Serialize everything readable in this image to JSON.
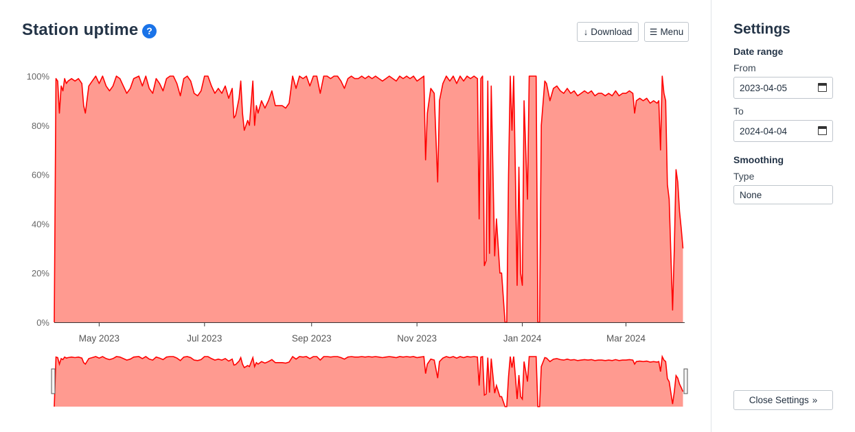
{
  "header": {
    "title": "Station uptime",
    "help_icon": "question-circle-icon",
    "help_glyph": "?",
    "download_label": "Download",
    "menu_label": "Menu"
  },
  "sidebar": {
    "title": "Settings",
    "date_range_heading": "Date range",
    "from_label": "From",
    "from_value": "2023-04-05",
    "to_label": "To",
    "to_value": "2024-04-04",
    "smoothing_heading": "Smoothing",
    "type_label": "Type",
    "type_value": "None",
    "close_label": "Close Settings"
  },
  "colors": {
    "line": "#ff0000",
    "fill": "#ff9a90",
    "accent": "#1a73e8"
  },
  "chart_data": {
    "type": "area",
    "title": "Station uptime",
    "xlabel": "",
    "ylabel": "",
    "x_start": "2023-04-05",
    "x_end": "2024-04-04",
    "ylim": [
      0,
      100
    ],
    "y_ticks": [
      "0%",
      "20%",
      "40%",
      "60%",
      "80%",
      "100%"
    ],
    "x_ticks": [
      {
        "date": "2023-05-01",
        "label": "May 2023"
      },
      {
        "date": "2023-07-01",
        "label": "Jul 2023"
      },
      {
        "date": "2023-09-01",
        "label": "Sep 2023"
      },
      {
        "date": "2023-11-01",
        "label": "Nov 2023"
      },
      {
        "date": "2024-01-01",
        "label": "Jan 2024"
      },
      {
        "date": "2024-03-01",
        "label": "Mar 2024"
      }
    ],
    "grid": false,
    "legend": "none",
    "navigator": true,
    "series": [
      {
        "points": [
          [
            "2023-04-05",
            0
          ],
          [
            "2023-04-06",
            99
          ],
          [
            "2023-04-07",
            98
          ],
          [
            "2023-04-08",
            85
          ],
          [
            "2023-04-09",
            96
          ],
          [
            "2023-04-10",
            94
          ],
          [
            "2023-04-11",
            99
          ],
          [
            "2023-04-12",
            97
          ],
          [
            "2023-04-13",
            98
          ],
          [
            "2023-04-15",
            99
          ],
          [
            "2023-04-17",
            98
          ],
          [
            "2023-04-19",
            99
          ],
          [
            "2023-04-21",
            97
          ],
          [
            "2023-04-22",
            88
          ],
          [
            "2023-04-23",
            85
          ],
          [
            "2023-04-25",
            96
          ],
          [
            "2023-04-27",
            98
          ],
          [
            "2023-04-29",
            100
          ],
          [
            "2023-05-01",
            97
          ],
          [
            "2023-05-03",
            100
          ],
          [
            "2023-05-05",
            96
          ],
          [
            "2023-05-07",
            94
          ],
          [
            "2023-05-09",
            96
          ],
          [
            "2023-05-11",
            100
          ],
          [
            "2023-05-13",
            99
          ],
          [
            "2023-05-15",
            96
          ],
          [
            "2023-05-17",
            93
          ],
          [
            "2023-05-19",
            95
          ],
          [
            "2023-05-21",
            99
          ],
          [
            "2023-05-24",
            100
          ],
          [
            "2023-05-26",
            96
          ],
          [
            "2023-05-28",
            100
          ],
          [
            "2023-05-30",
            95
          ],
          [
            "2023-06-01",
            93
          ],
          [
            "2023-06-03",
            99
          ],
          [
            "2023-06-05",
            97
          ],
          [
            "2023-06-07",
            94
          ],
          [
            "2023-06-09",
            99
          ],
          [
            "2023-06-11",
            100
          ],
          [
            "2023-06-13",
            100
          ],
          [
            "2023-06-15",
            97
          ],
          [
            "2023-06-17",
            92
          ],
          [
            "2023-06-19",
            99
          ],
          [
            "2023-06-21",
            100
          ],
          [
            "2023-06-23",
            98
          ],
          [
            "2023-06-25",
            93
          ],
          [
            "2023-06-27",
            92
          ],
          [
            "2023-06-29",
            94
          ],
          [
            "2023-07-01",
            100
          ],
          [
            "2023-07-03",
            100
          ],
          [
            "2023-07-05",
            96
          ],
          [
            "2023-07-07",
            93
          ],
          [
            "2023-07-09",
            95
          ],
          [
            "2023-07-11",
            93
          ],
          [
            "2023-07-13",
            96
          ],
          [
            "2023-07-15",
            91
          ],
          [
            "2023-07-17",
            95
          ],
          [
            "2023-07-18",
            83
          ],
          [
            "2023-07-19",
            84
          ],
          [
            "2023-07-21",
            91
          ],
          [
            "2023-07-22",
            98
          ],
          [
            "2023-07-23",
            85
          ],
          [
            "2023-07-24",
            78
          ],
          [
            "2023-07-26",
            82
          ],
          [
            "2023-07-27",
            80
          ],
          [
            "2023-07-29",
            98
          ],
          [
            "2023-07-30",
            80
          ],
          [
            "2023-07-31",
            88
          ],
          [
            "2023-08-01",
            85
          ],
          [
            "2023-08-03",
            90
          ],
          [
            "2023-08-05",
            87
          ],
          [
            "2023-08-07",
            90
          ],
          [
            "2023-08-09",
            94
          ],
          [
            "2023-08-11",
            88
          ],
          [
            "2023-08-13",
            88
          ],
          [
            "2023-08-15",
            88
          ],
          [
            "2023-08-17",
            87
          ],
          [
            "2023-08-19",
            89
          ],
          [
            "2023-08-21",
            100
          ],
          [
            "2023-08-23",
            95
          ],
          [
            "2023-08-25",
            100
          ],
          [
            "2023-08-27",
            99
          ],
          [
            "2023-08-29",
            100
          ],
          [
            "2023-08-31",
            96
          ],
          [
            "2023-09-02",
            100
          ],
          [
            "2023-09-04",
            100
          ],
          [
            "2023-09-06",
            93
          ],
          [
            "2023-09-08",
            100
          ],
          [
            "2023-09-10",
            100
          ],
          [
            "2023-09-12",
            99
          ],
          [
            "2023-09-14",
            100
          ],
          [
            "2023-09-16",
            100
          ],
          [
            "2023-09-18",
            98
          ],
          [
            "2023-09-20",
            95
          ],
          [
            "2023-09-22",
            99
          ],
          [
            "2023-09-24",
            100
          ],
          [
            "2023-09-26",
            99
          ],
          [
            "2023-09-28",
            99
          ],
          [
            "2023-09-30",
            100
          ],
          [
            "2023-10-02",
            99
          ],
          [
            "2023-10-04",
            100
          ],
          [
            "2023-10-06",
            99
          ],
          [
            "2023-10-08",
            100
          ],
          [
            "2023-10-10",
            99
          ],
          [
            "2023-10-12",
            98
          ],
          [
            "2023-10-14",
            99
          ],
          [
            "2023-10-16",
            100
          ],
          [
            "2023-10-18",
            99
          ],
          [
            "2023-10-20",
            98
          ],
          [
            "2023-10-22",
            100
          ],
          [
            "2023-10-24",
            99
          ],
          [
            "2023-10-26",
            100
          ],
          [
            "2023-10-28",
            99
          ],
          [
            "2023-10-30",
            100
          ],
          [
            "2023-11-01",
            98
          ],
          [
            "2023-11-03",
            99
          ],
          [
            "2023-11-05",
            100
          ],
          [
            "2023-11-06",
            66
          ],
          [
            "2023-11-07",
            85
          ],
          [
            "2023-11-09",
            95
          ],
          [
            "2023-11-11",
            93
          ],
          [
            "2023-11-13",
            57
          ],
          [
            "2023-11-14",
            90
          ],
          [
            "2023-11-16",
            97
          ],
          [
            "2023-11-18",
            100
          ],
          [
            "2023-11-20",
            98
          ],
          [
            "2023-11-22",
            100
          ],
          [
            "2023-11-24",
            97
          ],
          [
            "2023-11-26",
            100
          ],
          [
            "2023-11-28",
            98
          ],
          [
            "2023-11-30",
            100
          ],
          [
            "2023-12-02",
            99
          ],
          [
            "2023-12-04",
            100
          ],
          [
            "2023-12-06",
            99
          ],
          [
            "2023-12-07",
            42
          ],
          [
            "2023-12-08",
            99
          ],
          [
            "2023-12-09",
            100
          ],
          [
            "2023-12-10",
            23
          ],
          [
            "2023-12-11",
            25
          ],
          [
            "2023-12-12",
            98
          ],
          [
            "2023-12-13",
            28
          ],
          [
            "2023-12-14",
            96
          ],
          [
            "2023-12-16",
            27
          ],
          [
            "2023-12-17",
            42
          ],
          [
            "2023-12-19",
            20
          ],
          [
            "2023-12-20",
            20
          ],
          [
            "2023-12-22",
            0
          ],
          [
            "2023-12-23",
            0
          ],
          [
            "2023-12-24",
            60
          ],
          [
            "2023-12-25",
            100
          ],
          [
            "2023-12-26",
            78
          ],
          [
            "2023-12-27",
            100
          ],
          [
            "2023-12-28",
            60
          ],
          [
            "2023-12-29",
            15
          ],
          [
            "2023-12-30",
            63
          ],
          [
            "2023-12-31",
            20
          ],
          [
            "2024-01-01",
            15
          ],
          [
            "2024-01-02",
            90
          ],
          [
            "2024-01-04",
            50
          ],
          [
            "2024-01-05",
            100
          ],
          [
            "2024-01-07",
            100
          ],
          [
            "2024-01-09",
            100
          ],
          [
            "2024-01-10",
            0
          ],
          [
            "2024-01-11",
            0
          ],
          [
            "2024-01-12",
            80
          ],
          [
            "2024-01-14",
            98
          ],
          [
            "2024-01-15",
            97
          ],
          [
            "2024-01-17",
            90
          ],
          [
            "2024-01-19",
            95
          ],
          [
            "2024-01-21",
            96
          ],
          [
            "2024-01-23",
            94
          ],
          [
            "2024-01-25",
            93
          ],
          [
            "2024-01-27",
            95
          ],
          [
            "2024-01-29",
            93
          ],
          [
            "2024-01-31",
            94
          ],
          [
            "2024-02-02",
            92
          ],
          [
            "2024-02-04",
            93
          ],
          [
            "2024-02-06",
            94
          ],
          [
            "2024-02-08",
            93
          ],
          [
            "2024-02-10",
            94
          ],
          [
            "2024-02-12",
            92
          ],
          [
            "2024-02-14",
            93
          ],
          [
            "2024-02-16",
            93
          ],
          [
            "2024-02-18",
            92
          ],
          [
            "2024-02-20",
            93
          ],
          [
            "2024-02-22",
            92
          ],
          [
            "2024-02-24",
            94
          ],
          [
            "2024-02-26",
            92
          ],
          [
            "2024-02-28",
            93
          ],
          [
            "2024-03-01",
            93
          ],
          [
            "2024-03-03",
            94
          ],
          [
            "2024-03-05",
            93
          ],
          [
            "2024-03-06",
            85
          ],
          [
            "2024-03-07",
            90
          ],
          [
            "2024-03-09",
            91
          ],
          [
            "2024-03-11",
            90
          ],
          [
            "2024-03-13",
            91
          ],
          [
            "2024-03-15",
            89
          ],
          [
            "2024-03-17",
            90
          ],
          [
            "2024-03-19",
            89
          ],
          [
            "2024-03-20",
            90
          ],
          [
            "2024-03-21",
            70
          ],
          [
            "2024-03-22",
            100
          ],
          [
            "2024-03-23",
            93
          ],
          [
            "2024-03-24",
            90
          ],
          [
            "2024-03-25",
            56
          ],
          [
            "2024-03-26",
            50
          ],
          [
            "2024-03-28",
            5
          ],
          [
            "2024-03-29",
            30
          ],
          [
            "2024-03-30",
            62
          ],
          [
            "2024-03-31",
            57
          ],
          [
            "2024-04-01",
            45
          ],
          [
            "2024-04-02",
            38
          ],
          [
            "2024-04-03",
            30
          ]
        ]
      }
    ]
  }
}
